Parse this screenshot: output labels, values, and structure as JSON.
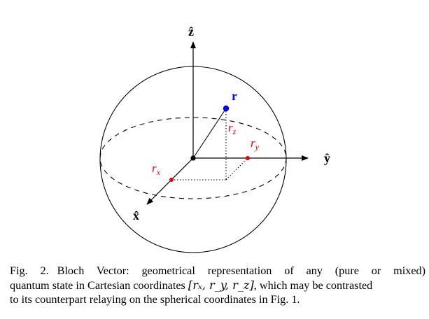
{
  "diagram": {
    "axes": {
      "z_label": "ẑ",
      "y_label": "ŷ",
      "x_label": "x̂"
    },
    "vector_label": "r",
    "component_labels": {
      "rx_base": "r",
      "rx_sub": "x",
      "ry_base": "r",
      "ry_sub": "y",
      "rz_base": "r",
      "rz_sub": "z"
    },
    "colors": {
      "vector": "#0000ee",
      "components": "#e00000",
      "lines": "#000000"
    }
  },
  "caption": {
    "label": "Fig. 2.",
    "line1": "Bloch Vector: geometrical representation of any (pure or mixed)",
    "line2_pre": "quantum state in Cartesian coordinates ",
    "line2_math": "[rₓ, r_y, r_z]",
    "line2_post": ", which may be contrasted",
    "line3": "to its counterpart relaying on the spherical coordinates in Fig. 1."
  }
}
